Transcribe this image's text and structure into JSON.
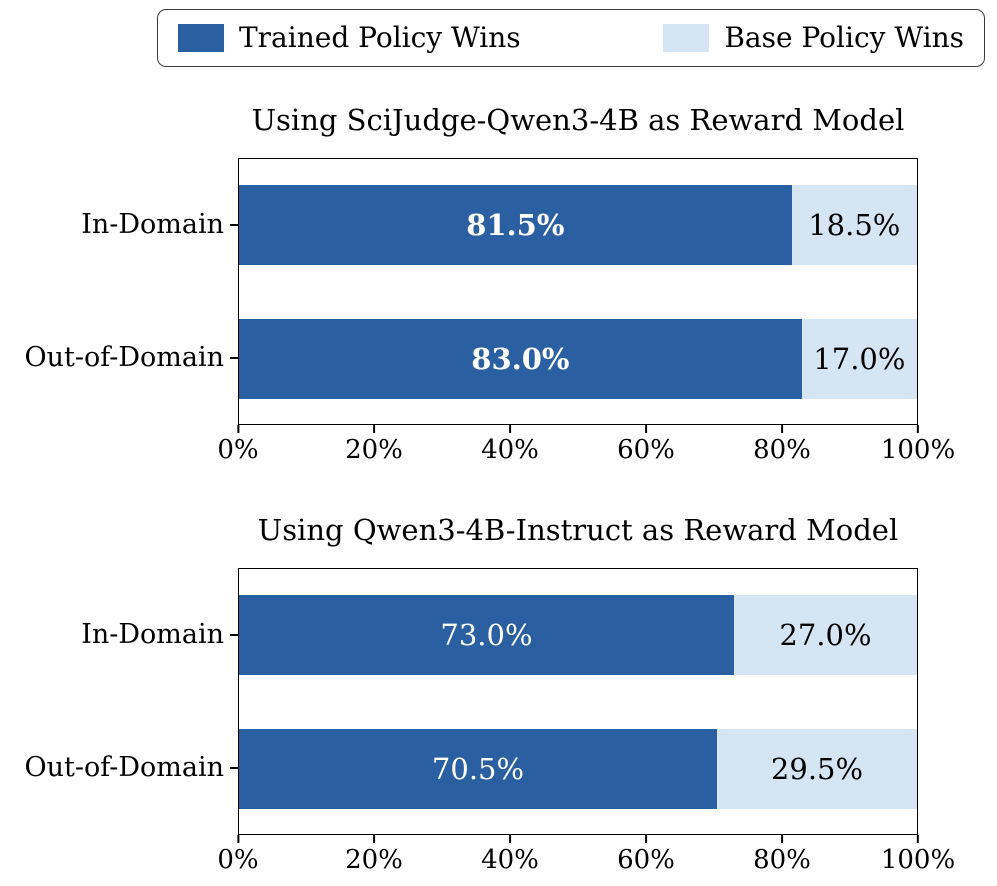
{
  "colors": {
    "trained": "#2a5fa2",
    "base": "#d6e5f4",
    "axis": "#000000",
    "background": "#ffffff"
  },
  "legend": {
    "position": "top",
    "items": [
      {
        "label": "Trained Policy Wins",
        "color": "#2a5fa2"
      },
      {
        "label": "Base Policy Wins",
        "color": "#d6e5f4"
      }
    ]
  },
  "chart_data": [
    {
      "type": "bar",
      "orientation": "horizontal",
      "stacked": true,
      "grid": false,
      "title": "Using SciJudge-Qwen3-4B as Reward Model",
      "categories": [
        "In-Domain",
        "Out-of-Domain"
      ],
      "series": [
        {
          "name": "Trained Policy Wins",
          "values": [
            81.5,
            83.0
          ]
        },
        {
          "name": "Base Policy Wins",
          "values": [
            18.5,
            17.0
          ]
        }
      ],
      "bar_labels": [
        [
          "81.5%",
          "18.5%"
        ],
        [
          "83.0%",
          "17.0%"
        ]
      ],
      "xlim": [
        0,
        100
      ],
      "xticks": [
        "0%",
        "20%",
        "40%",
        "60%",
        "80%",
        "100%"
      ]
    },
    {
      "type": "bar",
      "orientation": "horizontal",
      "stacked": true,
      "grid": false,
      "title": "Using Qwen3-4B-Instruct as Reward Model",
      "categories": [
        "In-Domain",
        "Out-of-Domain"
      ],
      "series": [
        {
          "name": "Trained Policy Wins",
          "values": [
            73.0,
            70.5
          ]
        },
        {
          "name": "Base Policy Wins",
          "values": [
            27.0,
            29.5
          ]
        }
      ],
      "bar_labels": [
        [
          "73.0%",
          "27.0%"
        ],
        [
          "70.5%",
          "29.5%"
        ]
      ],
      "xlim": [
        0,
        100
      ],
      "xticks": [
        "0%",
        "20%",
        "40%",
        "60%",
        "80%",
        "100%"
      ]
    }
  ]
}
